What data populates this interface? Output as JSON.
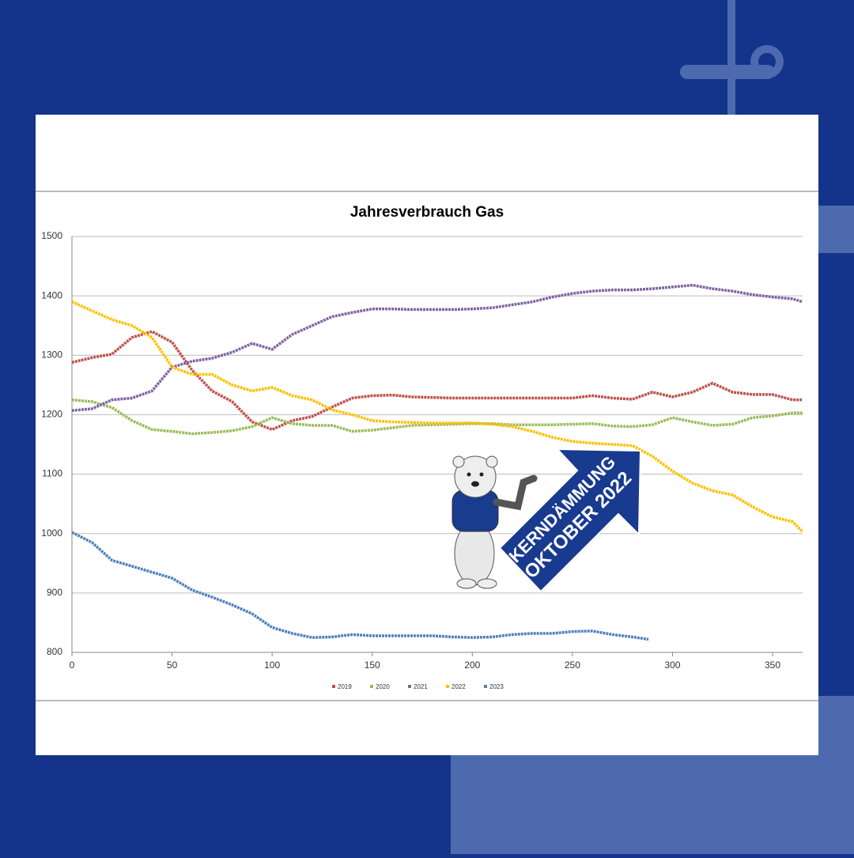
{
  "chart_data": {
    "type": "line",
    "title": "Jahresverbrauch Gas",
    "annotation": [
      "KERNDÄMMUNG",
      "OKTOBER 2022"
    ],
    "xlim": [
      0,
      365
    ],
    "xticks": [
      0,
      50,
      100,
      150,
      200,
      250,
      300,
      350
    ],
    "ylim": [
      800,
      1500
    ],
    "yticks": [
      800,
      900,
      1000,
      1100,
      1200,
      1300,
      1400,
      1500
    ],
    "grid": true,
    "legend": "bottom",
    "series": [
      {
        "name": "2019",
        "color": "#c0504d",
        "x": [
          0,
          10,
          20,
          30,
          40,
          50,
          60,
          70,
          80,
          90,
          100,
          110,
          120,
          130,
          140,
          150,
          160,
          170,
          180,
          190,
          200,
          210,
          220,
          230,
          240,
          250,
          260,
          270,
          280,
          290,
          300,
          310,
          320,
          330,
          340,
          350,
          360,
          365
        ],
        "values": [
          1288,
          1296,
          1302,
          1330,
          1340,
          1322,
          1275,
          1240,
          1222,
          1188,
          1175,
          1190,
          1197,
          1213,
          1228,
          1232,
          1233,
          1230,
          1229,
          1228,
          1228,
          1228,
          1228,
          1228,
          1228,
          1228,
          1232,
          1228,
          1226,
          1238,
          1230,
          1238,
          1253,
          1238,
          1234,
          1234,
          1225,
          1225
        ]
      },
      {
        "name": "2020",
        "color": "#9bbb59",
        "x": [
          0,
          10,
          20,
          30,
          40,
          50,
          60,
          70,
          80,
          90,
          100,
          110,
          120,
          130,
          140,
          150,
          160,
          170,
          180,
          190,
          200,
          210,
          220,
          230,
          240,
          250,
          260,
          270,
          280,
          290,
          300,
          310,
          320,
          330,
          340,
          350,
          360,
          365
        ],
        "values": [
          1225,
          1222,
          1212,
          1190,
          1175,
          1172,
          1168,
          1170,
          1173,
          1180,
          1195,
          1185,
          1182,
          1182,
          1172,
          1174,
          1178,
          1182,
          1183,
          1184,
          1185,
          1185,
          1183,
          1183,
          1183,
          1184,
          1185,
          1181,
          1180,
          1183,
          1195,
          1188,
          1182,
          1184,
          1195,
          1198,
          1203,
          1203
        ]
      },
      {
        "name": "2021",
        "color": "#8064a2",
        "x": [
          0,
          10,
          20,
          30,
          40,
          50,
          60,
          70,
          80,
          90,
          100,
          110,
          120,
          130,
          140,
          150,
          160,
          170,
          180,
          190,
          200,
          210,
          220,
          230,
          240,
          250,
          260,
          270,
          280,
          290,
          300,
          310,
          320,
          330,
          340,
          350,
          360,
          365
        ],
        "values": [
          1207,
          1210,
          1225,
          1228,
          1240,
          1280,
          1290,
          1295,
          1305,
          1320,
          1310,
          1335,
          1350,
          1365,
          1372,
          1378,
          1378,
          1377,
          1377,
          1377,
          1378,
          1380,
          1385,
          1390,
          1398,
          1404,
          1408,
          1410,
          1410,
          1412,
          1415,
          1418,
          1412,
          1408,
          1402,
          1398,
          1395,
          1390
        ]
      },
      {
        "name": "2022",
        "color": "#ffc000",
        "x": [
          0,
          10,
          20,
          30,
          40,
          50,
          60,
          70,
          80,
          90,
          100,
          110,
          120,
          130,
          140,
          150,
          160,
          170,
          180,
          190,
          200,
          210,
          220,
          230,
          240,
          250,
          260,
          270,
          280,
          290,
          300,
          310,
          320,
          330,
          340,
          350,
          360,
          365
        ],
        "values": [
          1390,
          1375,
          1360,
          1350,
          1330,
          1280,
          1268,
          1268,
          1250,
          1240,
          1246,
          1232,
          1225,
          1208,
          1200,
          1190,
          1188,
          1187,
          1186,
          1186,
          1186,
          1184,
          1180,
          1172,
          1162,
          1155,
          1152,
          1150,
          1148,
          1130,
          1105,
          1085,
          1072,
          1065,
          1045,
          1028,
          1020,
          1003
        ]
      },
      {
        "name": "2023",
        "color": "#4f81bd",
        "x": [
          0,
          10,
          20,
          30,
          40,
          50,
          60,
          70,
          80,
          90,
          100,
          110,
          120,
          130,
          140,
          150,
          160,
          170,
          180,
          190,
          200,
          210,
          220,
          230,
          240,
          250,
          260,
          270,
          280,
          288
        ],
        "values": [
          1002,
          985,
          955,
          945,
          935,
          925,
          905,
          893,
          880,
          865,
          842,
          832,
          825,
          826,
          830,
          828,
          828,
          828,
          828,
          826,
          825,
          826,
          830,
          832,
          832,
          835,
          836,
          830,
          826,
          822
        ]
      }
    ]
  }
}
